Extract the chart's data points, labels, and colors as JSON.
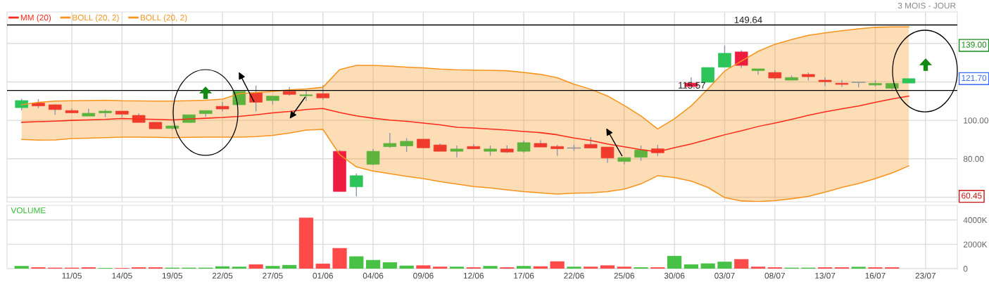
{
  "chart_data": [
    {
      "type": "candlestick",
      "subtitle": "3 MOIS - JOUR",
      "categories": [
        null,
        null,
        null,
        null,
        null,
        null,
        null,
        null,
        null,
        null,
        null,
        null,
        null,
        null,
        null,
        null,
        null,
        null,
        null,
        null,
        null,
        null,
        null,
        null,
        null,
        null,
        null,
        null,
        null,
        null,
        null,
        null,
        null,
        null,
        null,
        null,
        null,
        null,
        null,
        null,
        null,
        null,
        null,
        null,
        null,
        null,
        null,
        null,
        null,
        null,
        null,
        null,
        null,
        null,
        null,
        null
      ],
      "ohlc": [
        [
          106.6,
          111.2,
          105.3,
          110.3
        ],
        [
          109.0,
          111.0,
          106.3,
          107.5
        ],
        [
          108.1,
          108.3,
          102.9,
          105.6
        ],
        [
          105.1,
          106.2,
          103.9,
          103.9
        ],
        [
          102.2,
          106.0,
          102.2,
          103.7
        ],
        [
          103.9,
          105.6,
          101.7,
          104.8
        ],
        [
          104.8,
          104.8,
          101.7,
          103.2
        ],
        [
          102.6,
          103.7,
          98.9,
          98.9
        ],
        [
          99.0,
          99.0,
          95.6,
          95.6
        ],
        [
          95.8,
          97.1,
          95.1,
          97.1
        ],
        [
          98.9,
          102.9,
          98.9,
          102.9
        ],
        [
          103.5,
          105.1,
          101.9,
          105.1
        ],
        [
          107.3,
          109.6,
          104.6,
          105.9
        ],
        [
          108.1,
          115.1,
          108.1,
          115.1
        ],
        [
          114.3,
          118.1,
          104.6,
          109.4
        ],
        [
          110.3,
          112.6,
          108.2,
          112.6
        ],
        [
          115.1,
          117.3,
          112.9,
          113.5
        ],
        [
          112.8,
          115.4,
          110.1,
          113.3
        ],
        [
          113.9,
          118.3,
          110.7,
          111.7
        ],
        [
          83.9,
          84.6,
          63.0,
          63.0
        ],
        [
          65.4,
          72.3,
          60.45,
          71.2
        ],
        [
          77.1,
          85.1,
          76.7,
          83.9
        ],
        [
          86.3,
          93.5,
          85.7,
          88.0
        ],
        [
          86.7,
          90.7,
          83.6,
          89.1
        ],
        [
          90.2,
          90.2,
          85.7,
          85.7
        ],
        [
          87.2,
          88.0,
          83.9,
          83.9
        ],
        [
          83.9,
          86.9,
          80.7,
          85.1
        ],
        [
          86.4,
          87.6,
          85.2,
          85.2
        ],
        [
          83.9,
          86.9,
          81.5,
          85.1
        ],
        [
          85.1,
          86.9,
          83.0,
          83.5
        ],
        [
          83.9,
          89.4,
          83.2,
          88.4
        ],
        [
          88.0,
          89.7,
          86.1,
          86.1
        ],
        [
          86.4,
          87.3,
          81.5,
          85.2
        ],
        [
          85.6,
          87.3,
          84.1,
          85.6
        ],
        [
          87.5,
          91.2,
          85.6,
          85.6
        ],
        [
          86.1,
          86.1,
          77.9,
          80.4
        ],
        [
          78.6,
          80.6,
          77.1,
          80.6
        ],
        [
          80.8,
          86.9,
          79.0,
          84.6
        ],
        [
          85.2,
          87.3,
          81.5,
          83.1
        ],
        null,
        [
          119.4,
          122.4,
          117.6,
          117.6
        ],
        [
          119.8,
          127.5,
          119.8,
          127.5
        ],
        [
          127.7,
          139.0,
          127.7,
          134.9
        ],
        [
          135.6,
          136.5,
          127.3,
          128.6
        ],
        [
          125.9,
          126.8,
          123.7,
          126.8
        ],
        [
          124.9,
          126.1,
          121.1,
          122.0
        ],
        [
          120.9,
          123.4,
          120.9,
          122.3
        ],
        [
          123.9,
          124.9,
          120.7,
          122.7
        ],
        [
          120.9,
          122.5,
          117.8,
          120.1
        ],
        [
          119.3,
          121.0,
          117.3,
          118.7
        ],
        [
          119.8,
          119.8,
          117.2,
          119.8
        ],
        [
          118.4,
          120.9,
          117.6,
          119.2
        ],
        [
          116.7,
          119.2,
          116.0,
          119.2
        ],
        [
          119.4,
          121.7,
          119.4,
          121.7
        ],
        null,
        null
      ],
      "colors": [
        "#2dc45a",
        "#ef3b2b",
        "#ef3b2b",
        "#ef3b2b",
        "#5db33d",
        "#5db33d",
        "#ef3b2b",
        "#ef3b2b",
        "#ef3b2b",
        "#5db33d",
        "#5db33d",
        "#5db33d",
        "#ef3b2b",
        "#5db33d",
        "#ef3b2b",
        "#5db33d",
        "#ef3b2b",
        "#5db33d",
        "#ef3b2b",
        "#ee1c3f",
        "#2dc45a",
        "#5db33d",
        "#5db33d",
        "#5db33d",
        "#ef3b2b",
        "#ef3b2b",
        "#5db33d",
        "#ef3b2b",
        "#5db33d",
        "#ef3b2b",
        "#5db33d",
        "#ef3b2b",
        "#ef3b2b",
        "#999999",
        "#ef3b2b",
        "#ef3b2b",
        "#5db33d",
        "#5db33d",
        "#ef3b2b",
        null,
        "#ee1c3f",
        "#2dc45a",
        "#2dc45a",
        "#ee1c3f",
        "#5db33d",
        "#ef3b2b",
        "#5db33d",
        "#ef3b2b",
        "#ef3b2b",
        "#ef3b2b",
        "#999999",
        "#5db33d",
        "#5db33d",
        "#2dc45a",
        null,
        null
      ],
      "series": [
        {
          "name": "MM (20)",
          "type": "line",
          "color": "#ff2a1a",
          "values": [
            99.0,
            99.3,
            99.6,
            100.0,
            100.2,
            100.5,
            101.0,
            100.7,
            100.5,
            100.2,
            100.7,
            101.1,
            101.5,
            102.1,
            102.9,
            103.9,
            104.6,
            105.6,
            106.2,
            104.1,
            102.3,
            101.1,
            100.1,
            99.5,
            98.6,
            97.7,
            96.4,
            96.0,
            95.5,
            94.9,
            94.2,
            93.6,
            92.5,
            90.8,
            89.5,
            87.7,
            86.2,
            84.8,
            83.6,
            85.8,
            87.7,
            90.1,
            92.5,
            94.6,
            96.8,
            98.6,
            100.5,
            102.6,
            104.4,
            106.0,
            107.5,
            109.4,
            111.1,
            112.6,
            null,
            null
          ],
          "lower": [
            90.1,
            89.7,
            89.8,
            90.5,
            90.7,
            91.0,
            91.3,
            91.3,
            91.2,
            91.0,
            91.2,
            91.3,
            91.3,
            91.3,
            91.5,
            92.2,
            93.4,
            94.9,
            95.3,
            82.2,
            75.8,
            73.6,
            72.2,
            70.9,
            69.7,
            68.1,
            66.8,
            65.6,
            64.8,
            63.8,
            62.9,
            62.3,
            61.6,
            62.1,
            62.3,
            62.9,
            64.2,
            66.9,
            71.2,
            70.2,
            68.4,
            65.1,
            59.8,
            58.1,
            57.7,
            58.2,
            59.2,
            60.4,
            62.6,
            65.1,
            67.1,
            69.7,
            72.6,
            76.3,
            null,
            null
          ],
          "upper": [
            108.1,
            109.4,
            110.0,
            110.2,
            110.3,
            110.5,
            110.2,
            110.1,
            110.0,
            110.0,
            110.2,
            110.5,
            111.0,
            113.9,
            114.5,
            115.1,
            115.9,
            116.3,
            117.2,
            126.4,
            128.6,
            128.6,
            128.2,
            127.7,
            127.3,
            126.7,
            126.3,
            126.1,
            126.0,
            125.8,
            124.9,
            123.9,
            122.2,
            118.8,
            116.2,
            112.7,
            107.8,
            102.3,
            95.5,
            100.8,
            107.5,
            116.3,
            125.7,
            130.8,
            135.9,
            139.6,
            142.0,
            144.2,
            145.5,
            146.6,
            147.6,
            148.4,
            148.6,
            148.6,
            null,
            null
          ]
        },
        {
          "name": "BOLL (20, 2)",
          "type": "line",
          "color": "#f7941d",
          "values": [
            108.1,
            109.4,
            110.0,
            110.2,
            110.3,
            110.5,
            110.2,
            110.1,
            110.0,
            110.0,
            110.2,
            110.5,
            111.0,
            113.9,
            114.5,
            115.1,
            115.9,
            116.3,
            117.2,
            126.4,
            128.6,
            128.6,
            128.2,
            127.7,
            127.3,
            126.7,
            126.3,
            126.1,
            126.0,
            125.8,
            124.9,
            123.9,
            122.2,
            118.8,
            116.2,
            112.7,
            107.8,
            102.3,
            95.5,
            100.8,
            107.5,
            116.3,
            125.7,
            130.8,
            135.9,
            139.6,
            142.0,
            144.2,
            145.5,
            146.6,
            147.6,
            148.4,
            148.6,
            148.6,
            null,
            null
          ]
        },
        {
          "name": "BOLL (20, 2)",
          "type": "line",
          "color": "#f7941d",
          "values": [
            90.1,
            89.7,
            89.8,
            90.5,
            90.7,
            91.0,
            91.3,
            91.3,
            91.2,
            91.0,
            91.2,
            91.3,
            91.3,
            91.3,
            91.5,
            92.2,
            93.4,
            94.9,
            95.3,
            82.2,
            75.8,
            73.6,
            72.2,
            70.9,
            69.7,
            68.1,
            66.8,
            65.6,
            64.8,
            63.8,
            62.9,
            62.3,
            61.6,
            62.1,
            62.3,
            62.9,
            64.2,
            66.9,
            71.2,
            70.2,
            68.4,
            65.1,
            59.8,
            58.1,
            57.7,
            58.2,
            59.2,
            60.4,
            62.6,
            65.1,
            67.1,
            69.7,
            72.6,
            76.3,
            null,
            null
          ]
        }
      ],
      "ylim": [
        57.6,
        156.4
      ],
      "yticks": [
        {
          "value": 60,
          "label": null
        },
        {
          "value": 80,
          "label": "80.00"
        },
        {
          "value": 100,
          "label": "100.00"
        },
        {
          "value": 120,
          "label": null
        },
        {
          "value": 140,
          "label": null
        }
      ],
      "ref_lines": [
        {
          "axis": "y",
          "value": 149.64,
          "label": "149.64"
        },
        {
          "axis": "y",
          "value": 115.57,
          "label": "115.57"
        }
      ],
      "annotations": [
        {
          "text": "139.00",
          "y": 139.0
        },
        {
          "text": "121.70",
          "y": 121.7
        },
        {
          "text": "60.45",
          "y": 60.45
        }
      ],
      "grid": true,
      "legend": "top left",
      "tick_labels": "y"
    },
    {
      "type": "bar",
      "title": "VOLUME",
      "categories": [
        null,
        null,
        null,
        "11/05",
        null,
        null,
        "14/05",
        null,
        null,
        "19/05",
        null,
        null,
        "22/05",
        null,
        null,
        "27/05",
        null,
        null,
        "01/06",
        null,
        null,
        "04/06",
        null,
        null,
        "09/06",
        null,
        null,
        "12/06",
        null,
        null,
        "17/06",
        null,
        null,
        "22/06",
        null,
        null,
        "25/06",
        null,
        null,
        "30/06",
        null,
        null,
        "03/07",
        null,
        null,
        "08/07",
        null,
        null,
        "13/07",
        null,
        null,
        "16/07",
        null,
        null,
        "23/07",
        null
      ],
      "values": [
        220,
        110,
        80,
        80,
        110,
        50,
        50,
        110,
        110,
        80,
        80,
        80,
        190,
        160,
        350,
        220,
        300,
        4190,
        410,
        1690,
        1010,
        710,
        520,
        250,
        270,
        160,
        160,
        110,
        220,
        110,
        220,
        190,
        600,
        160,
        160,
        270,
        160,
        110,
        110,
        1050,
        350,
        430,
        570,
        780,
        160,
        110,
        80,
        80,
        110,
        110,
        150,
        110,
        110,
        null,
        null,
        null
      ],
      "colors": [
        "#3dbf3d",
        "#ff4040",
        "#ff4040",
        "#ff4040",
        "#ff4040",
        "#3dbf3d",
        "#ff4040",
        "#ff4040",
        "#ff4040",
        "#3dbf3d",
        "#3dbf3d",
        "#3dbf3d",
        "#3dbf3d",
        "#3dbf3d",
        "#ff4040",
        "#3dbf3d",
        "#3dbf3d",
        "#ff4040",
        "#ff4040",
        "#ff4040",
        "#3dbf3d",
        "#3dbf3d",
        "#3dbf3d",
        "#3dbf3d",
        "#ff4040",
        "#ff4040",
        "#3dbf3d",
        "#ff4040",
        "#3dbf3d",
        "#ff4040",
        "#3dbf3d",
        "#ff4040",
        "#ff4040",
        "#3dbf3d",
        "#ff4040",
        "#ff4040",
        "#ff4040",
        "#3dbf3d",
        "#ff4040",
        "#3dbf3d",
        "#3dbf3d",
        "#3dbf3d",
        "#3dbf3d",
        "#ff4040",
        "#ff4040",
        "#ff4040",
        "#3dbf3d",
        "#3dbf3d",
        "#ff4040",
        "#ff4040",
        "#3dbf3d",
        "#ff4040",
        "#ff4040",
        null,
        null,
        null
      ],
      "ylim": [
        0,
        5200
      ],
      "yticks": [
        0,
        {
          "value": 2000,
          "label": "2000K"
        },
        {
          "value": 4000,
          "label": "4000K"
        }
      ],
      "grid": true
    }
  ]
}
